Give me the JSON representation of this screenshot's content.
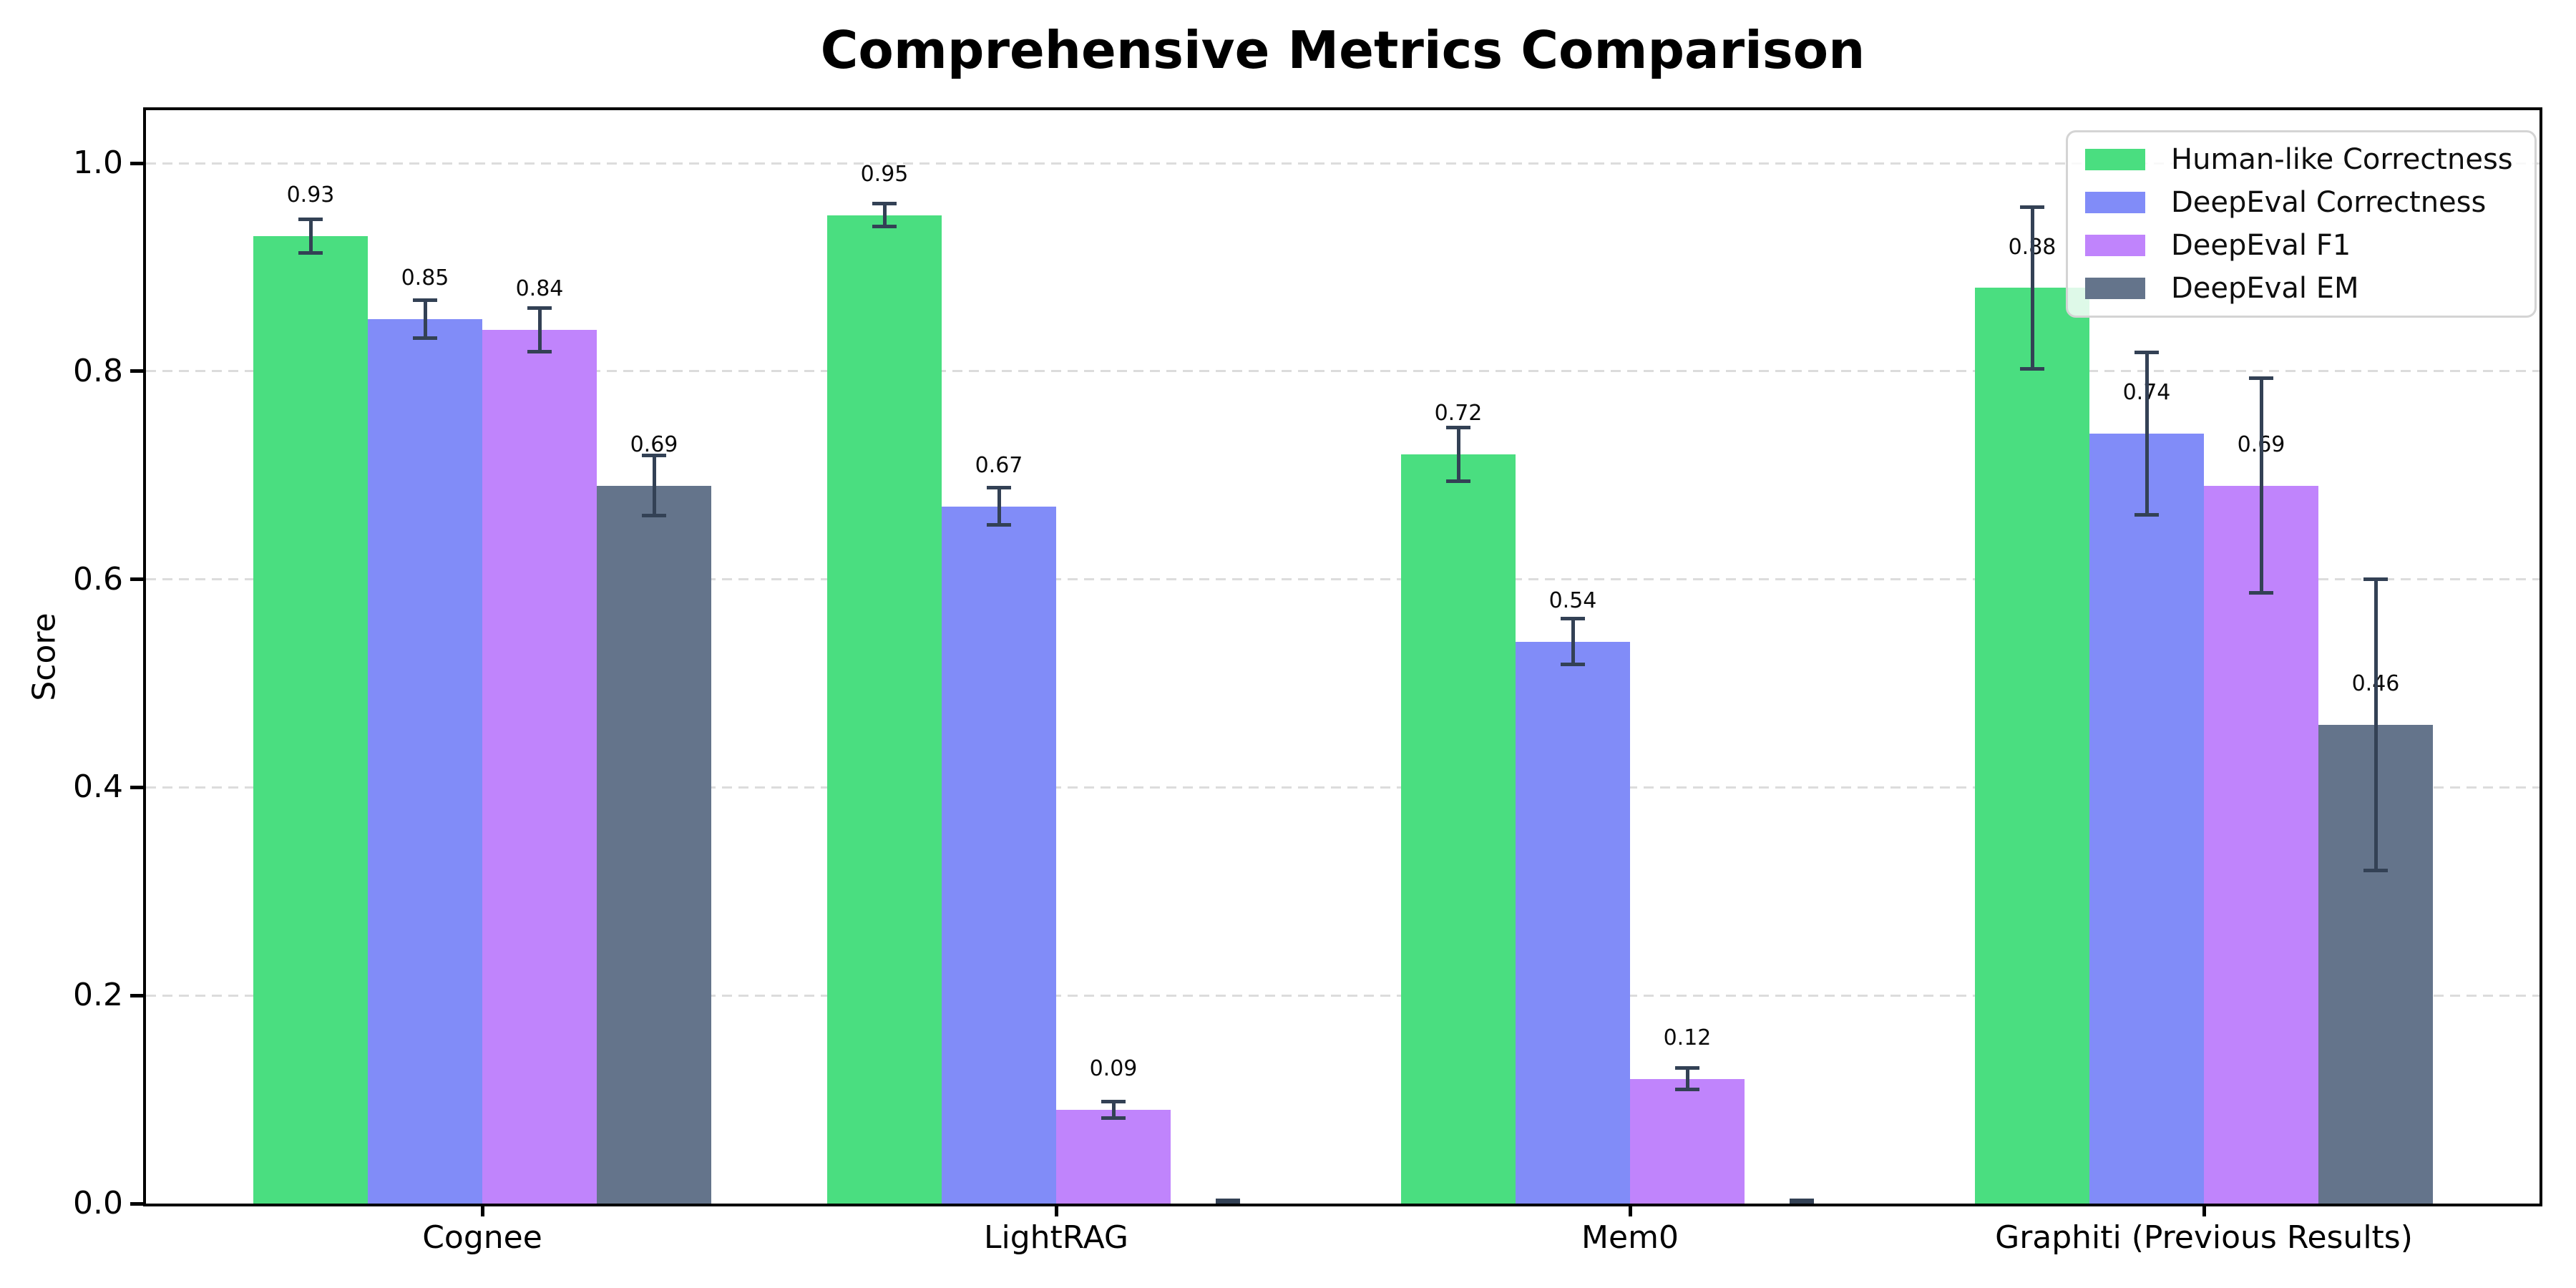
{
  "chart_data": {
    "type": "bar",
    "title": "Comprehensive Metrics Comparison",
    "xlabel": "",
    "ylabel": "Score",
    "categories": [
      "Cognee",
      "LightRAG",
      "Mem0",
      "Graphiti (Previous Results)"
    ],
    "series": [
      {
        "name": "Human-like Correctness",
        "color": "#4ade80",
        "values": [
          0.93,
          0.95,
          0.72,
          0.88
        ],
        "errors": [
          0.016,
          0.011,
          0.026,
          0.078
        ],
        "labels": [
          "0.93",
          "0.95",
          "0.72",
          "0.88"
        ]
      },
      {
        "name": "DeepEval Correctness",
        "color": "#818cf8",
        "values": [
          0.85,
          0.67,
          0.54,
          0.74
        ],
        "errors": [
          0.018,
          0.018,
          0.022,
          0.078
        ],
        "labels": [
          "0.85",
          "0.67",
          "0.54",
          "0.74"
        ]
      },
      {
        "name": "DeepEval F1",
        "color": "#c084fc",
        "values": [
          0.84,
          0.09,
          0.12,
          0.69
        ],
        "errors": [
          0.021,
          0.008,
          0.01,
          0.103
        ],
        "labels": [
          "0.84",
          "0.09",
          "0.12",
          "0.69"
        ]
      },
      {
        "name": "DeepEval EM",
        "color": "#64748b",
        "values": [
          0.69,
          0.0,
          0.0,
          0.46
        ],
        "errors": [
          0.029,
          0.003,
          0.003,
          0.14
        ],
        "labels": [
          "0.69",
          "",
          "",
          "0.46"
        ]
      }
    ],
    "yticks": [
      "0.0",
      "0.2",
      "0.4",
      "0.6",
      "0.8",
      "1.0"
    ],
    "ylim": [
      0,
      1.055
    ],
    "grid": {
      "axis": "y",
      "style": "dashed",
      "color": "#dcdcdc"
    },
    "legend": {
      "position": "upper right",
      "entries": [
        "Human-like Correctness",
        "DeepEval Correctness",
        "DeepEval F1",
        "DeepEval EM"
      ]
    },
    "error_bar_color": "#334155",
    "axis_color": "#000000",
    "background_color": "#ffffff"
  }
}
